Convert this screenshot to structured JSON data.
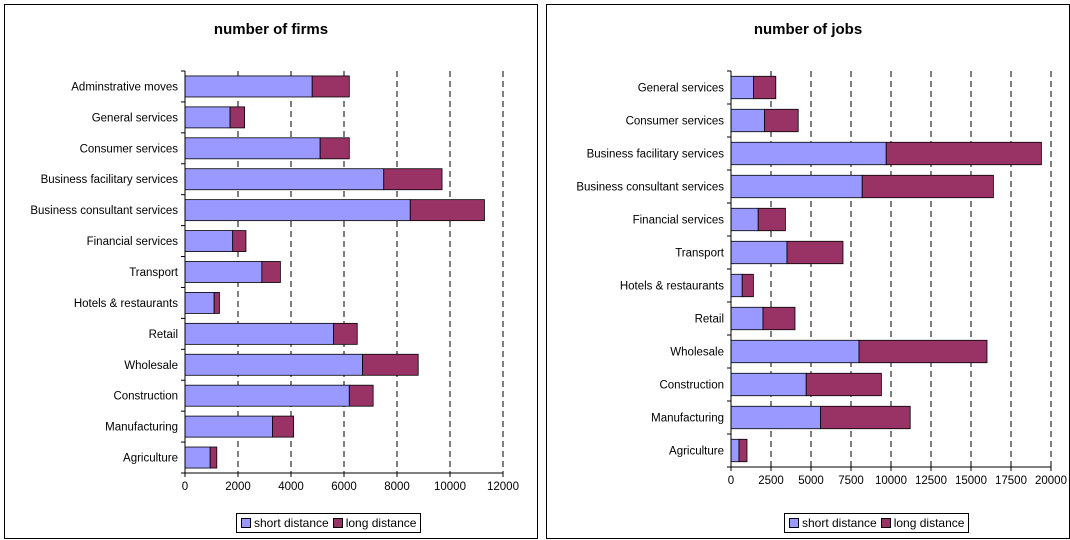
{
  "chart_data": [
    {
      "type": "bar",
      "orientation": "horizontal",
      "stacked": true,
      "title": "number of firms",
      "categories": [
        "Adminstrative moves",
        "General services",
        "Consumer services",
        "Business facilitary services",
        "Business consultant services",
        "Financial services",
        "Transport",
        "Hotels & restaurants",
        "Retail",
        "Wholesale",
        "Construction",
        "Manufacturing",
        "Agriculture"
      ],
      "series": [
        {
          "name": "short distance",
          "color": "#9999ff",
          "values": [
            4800,
            1700,
            5100,
            7500,
            8500,
            1800,
            2900,
            1100,
            5600,
            6700,
            6200,
            3300,
            950
          ]
        },
        {
          "name": "long distance",
          "color": "#993366",
          "values": [
            1400,
            550,
            1100,
            2200,
            2800,
            500,
            700,
            200,
            900,
            2100,
            900,
            800,
            250
          ]
        }
      ],
      "xlim": [
        0,
        12000
      ],
      "xticks": [
        0,
        2000,
        4000,
        6000,
        8000,
        10000,
        12000
      ],
      "grid": "vertical dashed",
      "legend": "bottom"
    },
    {
      "type": "bar",
      "orientation": "horizontal",
      "stacked": true,
      "title": "number of jobs",
      "categories": [
        "General services",
        "Consumer services",
        "Business facilitary services",
        "Business consultant services",
        "Financial services",
        "Transport",
        "Hotels & restaurants",
        "Retail",
        "Wholesale",
        "Construction",
        "Manufacturing",
        "Agriculture"
      ],
      "series": [
        {
          "name": "short distance",
          "color": "#9999ff",
          "values": [
            1400,
            2100,
            9700,
            8200,
            1700,
            3500,
            700,
            2000,
            8000,
            4700,
            5600,
            500
          ]
        },
        {
          "name": "long distance",
          "color": "#993366",
          "values": [
            1400,
            2100,
            9700,
            8200,
            1700,
            3500,
            700,
            2000,
            8000,
            4700,
            5600,
            500
          ]
        }
      ],
      "xlim": [
        0,
        20000
      ],
      "xticks": [
        0,
        2500,
        5000,
        7500,
        10000,
        12500,
        15000,
        17500,
        20000
      ],
      "grid": "vertical dashed",
      "legend": "bottom"
    }
  ]
}
